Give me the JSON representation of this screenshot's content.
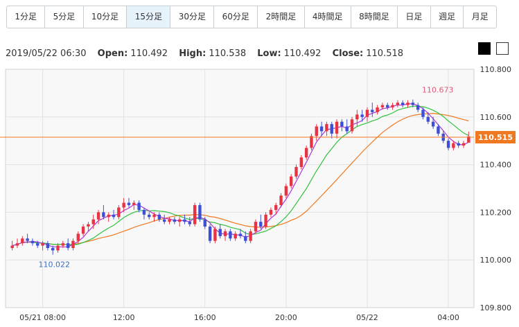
{
  "tabs": [
    {
      "label": "1分足",
      "active": false
    },
    {
      "label": "5分足",
      "active": false
    },
    {
      "label": "10分足",
      "active": false
    },
    {
      "label": "15分足",
      "active": true
    },
    {
      "label": "30分足",
      "active": false
    },
    {
      "label": "60分足",
      "active": false
    },
    {
      "label": "2時間足",
      "active": false
    },
    {
      "label": "4時間足",
      "active": false
    },
    {
      "label": "8時間足",
      "active": false
    },
    {
      "label": "日足",
      "active": false
    },
    {
      "label": "週足",
      "active": false
    },
    {
      "label": "月足",
      "active": false
    }
  ],
  "ohlc": {
    "datetime": "2019/05/22 06:30",
    "open_label": "Open:",
    "open": "110.492",
    "high_label": "High:",
    "high": "110.538",
    "low_label": "Low:",
    "low": "110.492",
    "close_label": "Close:",
    "close": "110.518"
  },
  "theme_options": [
    "black-swatch",
    "white-swatch"
  ],
  "colors": {
    "up": "#e83344",
    "down": "#3c4fd6",
    "ma_short": "#b034d6",
    "ma_mid": "#2ec23c",
    "ma_long": "#f07820",
    "current_line": "#f07820",
    "high_marker": "#e05a78",
    "low_marker": "#3a6fc4",
    "plot_bg": "#f8f8f8",
    "grid": "#e2e2e2"
  },
  "chart_data": {
    "type": "candlestick",
    "title": "",
    "xlabel": "",
    "ylabel": "",
    "ylim": [
      109.8,
      110.8
    ],
    "y_ticks": [
      "110.800",
      "110.600",
      "110.400",
      "110.200",
      "110.000",
      "109.800"
    ],
    "x_ticks": [
      {
        "label": "05/21 08:00",
        "bar": 6
      },
      {
        "label": "12:00",
        "bar": 22
      },
      {
        "label": "16:00",
        "bar": 38
      },
      {
        "label": "20:00",
        "bar": 54
      },
      {
        "label": "05/22",
        "bar": 70
      },
      {
        "label": "04:00",
        "bar": 86
      }
    ],
    "grid": true,
    "current_price": "110.515",
    "high_annotation": {
      "label": "110.673",
      "bar": 85
    },
    "low_annotation": {
      "label": "110.022",
      "bar": 8
    },
    "candles": [
      [
        110.05,
        110.08,
        110.04,
        110.06
      ],
      [
        110.06,
        110.09,
        110.05,
        110.07
      ],
      [
        110.07,
        110.1,
        110.06,
        110.09
      ],
      [
        110.09,
        110.11,
        110.07,
        110.08
      ],
      [
        110.08,
        110.09,
        110.06,
        110.07
      ],
      [
        110.07,
        110.08,
        110.05,
        110.06
      ],
      [
        110.06,
        110.08,
        110.04,
        110.07
      ],
      [
        110.07,
        110.08,
        110.04,
        110.05
      ],
      [
        110.05,
        110.06,
        110.022,
        110.04
      ],
      [
        110.04,
        110.07,
        110.03,
        110.06
      ],
      [
        110.06,
        110.08,
        110.05,
        110.07
      ],
      [
        110.07,
        110.09,
        110.04,
        110.05
      ],
      [
        110.05,
        110.09,
        110.04,
        110.08
      ],
      [
        110.08,
        110.12,
        110.07,
        110.11
      ],
      [
        110.11,
        110.15,
        110.1,
        110.14
      ],
      [
        110.14,
        110.16,
        110.12,
        110.15
      ],
      [
        110.15,
        110.19,
        110.13,
        110.17
      ],
      [
        110.17,
        110.21,
        110.15,
        110.2
      ],
      [
        110.2,
        110.23,
        110.17,
        110.18
      ],
      [
        110.18,
        110.2,
        110.16,
        110.19
      ],
      [
        110.19,
        110.21,
        110.17,
        110.18
      ],
      [
        110.18,
        110.23,
        110.17,
        110.22
      ],
      [
        110.22,
        110.26,
        110.2,
        110.24
      ],
      [
        110.24,
        110.26,
        110.22,
        110.23
      ],
      [
        110.23,
        110.25,
        110.21,
        110.24
      ],
      [
        110.24,
        110.25,
        110.2,
        110.21
      ],
      [
        110.21,
        110.22,
        110.17,
        110.19
      ],
      [
        110.19,
        110.2,
        110.17,
        110.18
      ],
      [
        110.18,
        110.2,
        110.16,
        110.19
      ],
      [
        110.19,
        110.2,
        110.16,
        110.17
      ],
      [
        110.17,
        110.19,
        110.15,
        110.16
      ],
      [
        110.16,
        110.18,
        110.15,
        110.17
      ],
      [
        110.17,
        110.18,
        110.15,
        110.16
      ],
      [
        110.16,
        110.18,
        110.14,
        110.17
      ],
      [
        110.17,
        110.19,
        110.15,
        110.16
      ],
      [
        110.16,
        110.18,
        110.14,
        110.15
      ],
      [
        110.15,
        110.24,
        110.14,
        110.23
      ],
      [
        110.23,
        110.24,
        110.16,
        110.17
      ],
      [
        110.17,
        110.18,
        110.13,
        110.14
      ],
      [
        110.14,
        110.15,
        110.07,
        110.08
      ],
      [
        110.08,
        110.14,
        110.07,
        110.13
      ],
      [
        110.13,
        110.15,
        110.09,
        110.1
      ],
      [
        110.1,
        110.13,
        110.08,
        110.12
      ],
      [
        110.12,
        110.13,
        110.08,
        110.09
      ],
      [
        110.09,
        110.12,
        110.08,
        110.11
      ],
      [
        110.11,
        110.13,
        110.09,
        110.1
      ],
      [
        110.1,
        110.12,
        110.07,
        110.08
      ],
      [
        110.08,
        110.13,
        110.07,
        110.12
      ],
      [
        110.12,
        110.17,
        110.11,
        110.16
      ],
      [
        110.16,
        110.19,
        110.13,
        110.14
      ],
      [
        110.14,
        110.2,
        110.13,
        110.19
      ],
      [
        110.19,
        110.22,
        110.18,
        110.21
      ],
      [
        110.21,
        110.24,
        110.19,
        110.23
      ],
      [
        110.23,
        110.28,
        110.22,
        110.27
      ],
      [
        110.27,
        110.32,
        110.26,
        110.31
      ],
      [
        110.31,
        110.36,
        110.3,
        110.35
      ],
      [
        110.35,
        110.4,
        110.34,
        110.39
      ],
      [
        110.39,
        110.44,
        110.38,
        110.43
      ],
      [
        110.43,
        110.48,
        110.42,
        110.47
      ],
      [
        110.47,
        110.53,
        110.46,
        110.52
      ],
      [
        110.52,
        110.57,
        110.5,
        110.56
      ],
      [
        110.56,
        110.58,
        110.52,
        110.54
      ],
      [
        110.54,
        110.58,
        110.52,
        110.57
      ],
      [
        110.57,
        110.58,
        110.51,
        110.53
      ],
      [
        110.53,
        110.59,
        110.51,
        110.58
      ],
      [
        110.58,
        110.59,
        110.54,
        110.56
      ],
      [
        110.56,
        110.59,
        110.53,
        110.54
      ],
      [
        110.54,
        110.6,
        110.53,
        110.59
      ],
      [
        110.59,
        110.63,
        110.56,
        110.61
      ],
      [
        110.61,
        110.63,
        110.58,
        110.6
      ],
      [
        110.6,
        110.64,
        110.58,
        110.63
      ],
      [
        110.63,
        110.66,
        110.6,
        110.62
      ],
      [
        110.62,
        110.65,
        110.61,
        110.64
      ],
      [
        110.64,
        110.66,
        110.63,
        110.65
      ],
      [
        110.65,
        110.66,
        110.63,
        110.64
      ],
      [
        110.64,
        110.66,
        110.63,
        110.65
      ],
      [
        110.65,
        110.67,
        110.64,
        110.66
      ],
      [
        110.66,
        110.67,
        110.64,
        110.65
      ],
      [
        110.65,
        110.67,
        110.64,
        110.66
      ],
      [
        110.66,
        110.673,
        110.64,
        110.65
      ],
      [
        110.65,
        110.66,
        110.62,
        110.63
      ],
      [
        110.63,
        110.64,
        110.59,
        110.6
      ],
      [
        110.6,
        110.62,
        110.57,
        110.58
      ],
      [
        110.58,
        110.6,
        110.55,
        110.56
      ],
      [
        110.56,
        110.57,
        110.52,
        110.53
      ],
      [
        110.53,
        110.54,
        110.49,
        110.5
      ],
      [
        110.5,
        110.51,
        110.46,
        110.47
      ],
      [
        110.47,
        110.5,
        110.46,
        110.49
      ],
      [
        110.49,
        110.5,
        110.47,
        110.48
      ],
      [
        110.48,
        110.5,
        110.47,
        110.49
      ],
      [
        110.492,
        110.538,
        110.492,
        110.518
      ]
    ]
  }
}
